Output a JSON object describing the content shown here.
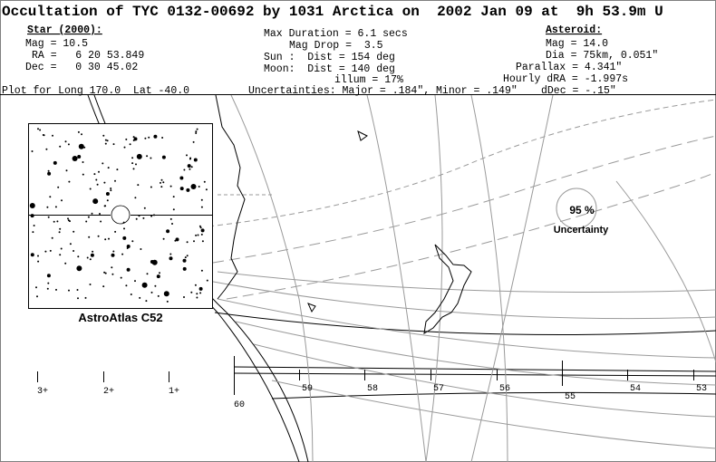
{
  "header": {
    "title": "Occultation of TYC 0132-00692 by 1031 Arctica on  2002 Jan 09 at  9h 53.9m U"
  },
  "star": {
    "heading": "Star (2000):",
    "lines": [
      "Mag = 10.5",
      "RA =   6 20 53.849",
      "Dec =   0 30 45.02"
    ]
  },
  "event": {
    "lines": [
      "Max Duration = 6.1 secs",
      "Mag Drop =  3.5",
      "Sun :  Dist = 154 deg",
      "Moon:  Dist = 140 deg",
      "illum = 17%"
    ]
  },
  "asteroid": {
    "heading": "Asteroid:",
    "lines": [
      "Mag = 14.0",
      "Dia = 75km, 0.051\"",
      "Parallax = 4.341\"",
      "Hourly dRA = -1.997s",
      "dDec = -.15\""
    ]
  },
  "footer": {
    "plot": "Plot for Long 170.0  Lat -40.0",
    "uncertainties": "Uncertainties: Major = .184\", Minor = .149\""
  },
  "finder": {
    "label": "AstroAtlas C52"
  },
  "uncertainty": {
    "percent": "95 %",
    "label": "Uncertainty"
  },
  "scale": {
    "left": [
      "3+",
      "2+",
      "1+"
    ],
    "ticks": [
      "60",
      "59",
      "58",
      "57",
      "56",
      "55",
      "54",
      "53"
    ]
  }
}
